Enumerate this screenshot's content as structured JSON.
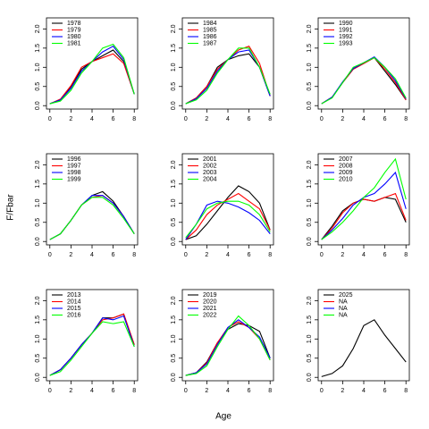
{
  "xlabel": "Age",
  "ylabel": "F/Fbar",
  "chart_data": [
    {
      "type": "line",
      "x": [
        0,
        1,
        2,
        3,
        4,
        5,
        6,
        7,
        8
      ],
      "xlim": [
        -0.32,
        8.32
      ],
      "ylim": [
        -0.088,
        2.288
      ],
      "xticks": [
        0,
        2,
        4,
        6,
        8
      ],
      "yticks": [
        {
          "value": 0,
          "label": "0.0"
        },
        {
          "value": 0.5,
          "label": "0.5"
        },
        {
          "value": 1,
          "label": "1.0"
        },
        {
          "value": 1.5,
          "label": "1.5"
        },
        {
          "value": 2,
          "label": "2.0"
        }
      ],
      "legend": "top-left",
      "series": [
        {
          "name": "1978",
          "color": "#000000",
          "values": [
            0.05,
            0.15,
            0.5,
            0.95,
            1.15,
            1.3,
            1.45,
            1.15,
            0.3
          ]
        },
        {
          "name": "1979",
          "color": "#ff0000",
          "values": [
            0.05,
            0.17,
            0.52,
            1.0,
            1.15,
            1.25,
            1.35,
            1.1,
            0.3
          ]
        },
        {
          "name": "1980",
          "color": "#0000ff",
          "values": [
            0.05,
            0.15,
            0.45,
            0.9,
            1.15,
            1.4,
            1.55,
            1.2,
            0.3
          ]
        },
        {
          "name": "1981",
          "color": "#00ff00",
          "values": [
            0.05,
            0.12,
            0.4,
            0.85,
            1.15,
            1.5,
            1.6,
            1.25,
            0.3
          ]
        }
      ]
    },
    {
      "type": "line",
      "x": [
        0,
        1,
        2,
        3,
        4,
        5,
        6,
        7,
        8
      ],
      "xlim": [
        -0.32,
        8.32
      ],
      "ylim": [
        -0.088,
        2.288
      ],
      "xticks": [
        0,
        2,
        4,
        6,
        8
      ],
      "yticks": [
        {
          "value": 0,
          "label": "0.0"
        },
        {
          "value": 0.5,
          "label": "0.5"
        },
        {
          "value": 1,
          "label": "1.0"
        },
        {
          "value": 1.5,
          "label": "1.5"
        },
        {
          "value": 2,
          "label": "2.0"
        }
      ],
      "legend": "top-left",
      "series": [
        {
          "name": "1984",
          "color": "#000000",
          "values": [
            0.05,
            0.2,
            0.5,
            1.0,
            1.2,
            1.3,
            1.35,
            1.0,
            0.25
          ]
        },
        {
          "name": "1985",
          "color": "#ff0000",
          "values": [
            0.05,
            0.2,
            0.5,
            0.95,
            1.2,
            1.45,
            1.55,
            1.1,
            0.25
          ]
        },
        {
          "name": "1986",
          "color": "#0000ff",
          "values": [
            0.05,
            0.18,
            0.45,
            0.9,
            1.2,
            1.4,
            1.45,
            1.0,
            0.25
          ]
        },
        {
          "name": "1987",
          "color": "#00ff00",
          "values": [
            0.05,
            0.15,
            0.4,
            0.85,
            1.2,
            1.5,
            1.5,
            1.0,
            0.3
          ]
        }
      ]
    },
    {
      "type": "line",
      "x": [
        0,
        1,
        2,
        3,
        4,
        5,
        6,
        7,
        8
      ],
      "xlim": [
        -0.32,
        8.32
      ],
      "ylim": [
        -0.088,
        2.288
      ],
      "xticks": [
        0,
        2,
        4,
        6,
        8
      ],
      "yticks": [
        {
          "value": 0,
          "label": "0.0"
        },
        {
          "value": 0.5,
          "label": "0.5"
        },
        {
          "value": 1,
          "label": "1.0"
        },
        {
          "value": 1.5,
          "label": "1.5"
        },
        {
          "value": 2,
          "label": "2.0"
        }
      ],
      "legend": "top-left",
      "series": [
        {
          "name": "1990",
          "color": "#000000",
          "values": [
            0.05,
            0.22,
            0.6,
            0.95,
            1.1,
            1.25,
            0.9,
            0.55,
            0.15
          ]
        },
        {
          "name": "1991",
          "color": "#ff0000",
          "values": [
            0.05,
            0.22,
            0.6,
            0.95,
            1.1,
            1.25,
            0.95,
            0.6,
            0.15
          ]
        },
        {
          "name": "1992",
          "color": "#0000ff",
          "values": [
            0.05,
            0.22,
            0.62,
            0.97,
            1.12,
            1.27,
            1.0,
            0.65,
            0.18
          ]
        },
        {
          "name": "1993",
          "color": "#00ff00",
          "values": [
            0.05,
            0.2,
            0.6,
            1.0,
            1.12,
            1.25,
            1.0,
            0.7,
            0.2
          ]
        }
      ]
    },
    {
      "type": "line",
      "x": [
        0,
        1,
        2,
        3,
        4,
        5,
        6,
        7,
        8
      ],
      "xlim": [
        -0.32,
        8.32
      ],
      "ylim": [
        -0.088,
        2.288
      ],
      "xticks": [
        0,
        2,
        4,
        6,
        8
      ],
      "yticks": [
        {
          "value": 0,
          "label": "0.0"
        },
        {
          "value": 0.5,
          "label": "0.5"
        },
        {
          "value": 1,
          "label": "1.0"
        },
        {
          "value": 1.5,
          "label": "1.5"
        },
        {
          "value": 2,
          "label": "2.0"
        }
      ],
      "legend": "top-left",
      "series": [
        {
          "name": "1996",
          "color": "#000000",
          "values": [
            0.05,
            0.2,
            0.55,
            0.95,
            1.2,
            1.3,
            1.05,
            0.65,
            0.2
          ]
        },
        {
          "name": "1997",
          "color": "#ff0000",
          "values": [
            0.05,
            0.2,
            0.55,
            0.95,
            1.15,
            1.2,
            1.0,
            0.65,
            0.2
          ]
        },
        {
          "name": "1998",
          "color": "#0000ff",
          "values": [
            0.05,
            0.2,
            0.55,
            0.95,
            1.2,
            1.2,
            1.0,
            0.65,
            0.2
          ]
        },
        {
          "name": "1999",
          "color": "#00ff00",
          "values": [
            0.05,
            0.2,
            0.55,
            0.95,
            1.15,
            1.15,
            0.95,
            0.6,
            0.2
          ]
        }
      ]
    },
    {
      "type": "line",
      "x": [
        0,
        1,
        2,
        3,
        4,
        5,
        6,
        7,
        8
      ],
      "xlim": [
        -0.32,
        8.32
      ],
      "ylim": [
        -0.088,
        2.288
      ],
      "xticks": [
        0,
        2,
        4,
        6,
        8
      ],
      "yticks": [
        {
          "value": 0,
          "label": "0.0"
        },
        {
          "value": 0.5,
          "label": "0.5"
        },
        {
          "value": 1,
          "label": "1.0"
        },
        {
          "value": 1.5,
          "label": "1.5"
        },
        {
          "value": 2,
          "label": "2.0"
        }
      ],
      "legend": "top-left",
      "series": [
        {
          "name": "2001",
          "color": "#000000",
          "values": [
            0.05,
            0.15,
            0.45,
            0.8,
            1.15,
            1.45,
            1.3,
            1.0,
            0.3
          ]
        },
        {
          "name": "2002",
          "color": "#ff0000",
          "values": [
            0.05,
            0.3,
            0.7,
            0.95,
            1.1,
            1.25,
            1.05,
            0.85,
            0.3
          ]
        },
        {
          "name": "2003",
          "color": "#0000ff",
          "values": [
            0.05,
            0.45,
            0.95,
            1.05,
            1.0,
            0.9,
            0.75,
            0.55,
            0.2
          ]
        },
        {
          "name": "2004",
          "color": "#00ff00",
          "values": [
            0.1,
            0.45,
            0.85,
            1.0,
            1.05,
            1.05,
            0.95,
            0.7,
            0.25
          ]
        }
      ]
    },
    {
      "type": "line",
      "x": [
        0,
        1,
        2,
        3,
        4,
        5,
        6,
        7,
        8
      ],
      "xlim": [
        -0.32,
        8.32
      ],
      "ylim": [
        -0.088,
        2.288
      ],
      "xticks": [
        0,
        2,
        4,
        6,
        8
      ],
      "yticks": [
        {
          "value": 0,
          "label": "0.0"
        },
        {
          "value": 0.5,
          "label": "0.5"
        },
        {
          "value": 1,
          "label": "1.0"
        },
        {
          "value": 1.5,
          "label": "1.5"
        },
        {
          "value": 2,
          "label": "2.0"
        }
      ],
      "legend": "top-left",
      "series": [
        {
          "name": "2007",
          "color": "#000000",
          "values": [
            0.05,
            0.4,
            0.8,
            1.0,
            1.1,
            1.05,
            1.15,
            1.1,
            0.5
          ]
        },
        {
          "name": "2008",
          "color": "#ff0000",
          "values": [
            0.05,
            0.35,
            0.75,
            1.0,
            1.1,
            1.05,
            1.15,
            1.25,
            0.55
          ]
        },
        {
          "name": "2009",
          "color": "#0000ff",
          "values": [
            0.05,
            0.3,
            0.6,
            0.95,
            1.15,
            1.25,
            1.5,
            1.8,
            0.85
          ]
        },
        {
          "name": "2010",
          "color": "#00ff00",
          "values": [
            0.05,
            0.25,
            0.5,
            0.8,
            1.15,
            1.4,
            1.8,
            2.15,
            1.1
          ]
        }
      ]
    },
    {
      "type": "line",
      "x": [
        0,
        1,
        2,
        3,
        4,
        5,
        6,
        7,
        8
      ],
      "xlim": [
        -0.32,
        8.32
      ],
      "ylim": [
        -0.088,
        2.288
      ],
      "xticks": [
        0,
        2,
        4,
        6,
        8
      ],
      "yticks": [
        {
          "value": 0,
          "label": "0.0"
        },
        {
          "value": 0.5,
          "label": "0.5"
        },
        {
          "value": 1,
          "label": "1.0"
        },
        {
          "value": 1.5,
          "label": "1.5"
        },
        {
          "value": 2,
          "label": "2.0"
        }
      ],
      "legend": "top-left",
      "series": [
        {
          "name": "2013",
          "color": "#000000",
          "values": [
            0.05,
            0.2,
            0.5,
            0.85,
            1.15,
            1.55,
            1.55,
            1.65,
            0.85
          ]
        },
        {
          "name": "2014",
          "color": "#ff0000",
          "values": [
            0.05,
            0.2,
            0.5,
            0.85,
            1.15,
            1.5,
            1.55,
            1.65,
            0.85
          ]
        },
        {
          "name": "2015",
          "color": "#0000ff",
          "values": [
            0.05,
            0.2,
            0.5,
            0.85,
            1.15,
            1.55,
            1.5,
            1.6,
            0.8
          ]
        },
        {
          "name": "2016",
          "color": "#00ff00",
          "values": [
            0.05,
            0.15,
            0.45,
            0.8,
            1.15,
            1.45,
            1.4,
            1.45,
            0.8
          ]
        }
      ]
    },
    {
      "type": "line",
      "x": [
        0,
        1,
        2,
        3,
        4,
        5,
        6,
        7,
        8
      ],
      "xlim": [
        -0.32,
        8.32
      ],
      "ylim": [
        -0.088,
        2.288
      ],
      "xticks": [
        0,
        2,
        4,
        6,
        8
      ],
      "yticks": [
        {
          "value": 0,
          "label": "0.0"
        },
        {
          "value": 0.5,
          "label": "0.5"
        },
        {
          "value": 1,
          "label": "1.0"
        },
        {
          "value": 1.5,
          "label": "1.5"
        },
        {
          "value": 2,
          "label": "2.0"
        }
      ],
      "legend": "top-left",
      "series": [
        {
          "name": "2019",
          "color": "#000000",
          "values": [
            0.05,
            0.12,
            0.4,
            0.9,
            1.25,
            1.4,
            1.35,
            1.2,
            0.5
          ]
        },
        {
          "name": "2020",
          "color": "#ff0000",
          "values": [
            0.05,
            0.12,
            0.38,
            0.9,
            1.3,
            1.45,
            1.3,
            1.0,
            0.45
          ]
        },
        {
          "name": "2021",
          "color": "#0000ff",
          "values": [
            0.05,
            0.12,
            0.35,
            0.85,
            1.3,
            1.5,
            1.3,
            1.05,
            0.5
          ]
        },
        {
          "name": "2022",
          "color": "#00ff00",
          "values": [
            0.05,
            0.1,
            0.3,
            0.8,
            1.25,
            1.6,
            1.35,
            1.0,
            0.45
          ]
        }
      ]
    },
    {
      "type": "line",
      "x": [
        0,
        1,
        2,
        3,
        4,
        5,
        6,
        7,
        8
      ],
      "xlim": [
        -0.32,
        8.32
      ],
      "ylim": [
        -0.088,
        2.288
      ],
      "xticks": [
        0,
        2,
        4,
        6,
        8
      ],
      "yticks": [
        {
          "value": 0,
          "label": "0.0"
        },
        {
          "value": 0.5,
          "label": "0.5"
        },
        {
          "value": 1,
          "label": "1.0"
        },
        {
          "value": 1.5,
          "label": "1.5"
        },
        {
          "value": 2,
          "label": "2.0"
        }
      ],
      "legend": "top-left",
      "series": [
        {
          "name": "2025",
          "color": "#000000",
          "values": [
            0.02,
            0.1,
            0.3,
            0.75,
            1.35,
            1.5,
            1.1,
            0.75,
            0.4
          ]
        },
        {
          "name": "NA",
          "color": "#ff0000",
          "values": [
            null,
            null,
            null,
            null,
            null,
            null,
            null,
            null,
            null
          ]
        },
        {
          "name": "NA",
          "color": "#0000ff",
          "values": [
            null,
            null,
            null,
            null,
            null,
            null,
            null,
            null,
            null
          ]
        },
        {
          "name": "NA",
          "color": "#00ff00",
          "values": [
            null,
            null,
            null,
            null,
            null,
            null,
            null,
            null,
            null
          ]
        }
      ]
    }
  ]
}
